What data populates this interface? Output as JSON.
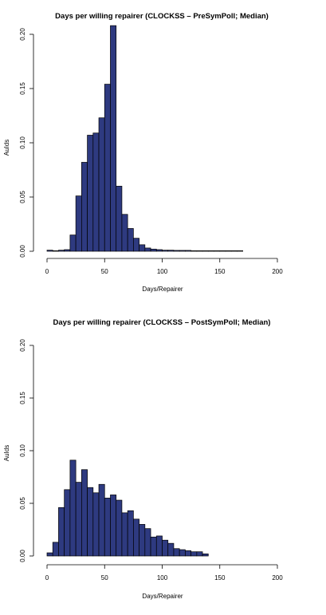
{
  "chart_data": [
    {
      "type": "bar",
      "title": "Days per willing repairer (CLOCKSS – PreSymPoll; Median)",
      "xlabel": "Days/Repairer",
      "ylabel": "AuIds",
      "xlim": [
        0,
        200
      ],
      "ylim": [
        0,
        0.2
      ],
      "xticks": [
        "0",
        "50",
        "100",
        "150",
        "200"
      ],
      "yticks": [
        "0.00",
        "0.05",
        "0.10",
        "0.15",
        "0.20"
      ],
      "bin_width": 5,
      "bins_start": [
        0,
        5,
        10,
        15,
        20,
        25,
        30,
        35,
        40,
        45,
        50,
        55,
        60,
        65,
        70,
        75,
        80,
        85,
        90,
        95,
        100,
        105,
        110,
        115,
        120,
        125,
        130,
        135,
        140,
        145,
        150,
        155,
        160,
        165
      ],
      "values": [
        0.001,
        0.0005,
        0.001,
        0.0015,
        0.015,
        0.051,
        0.082,
        0.107,
        0.109,
        0.123,
        0.154,
        0.208,
        0.06,
        0.034,
        0.021,
        0.012,
        0.006,
        0.003,
        0.002,
        0.0015,
        0.001,
        0.001,
        0.0008,
        0.0008,
        0.0008,
        0.0005,
        0.0005,
        0.0005,
        0.0005,
        0.0005,
        0.0005,
        0.0005,
        0.0005,
        0.0005
      ],
      "grid": false,
      "bar_color": "#2e3a80"
    },
    {
      "type": "bar",
      "title": "Days per willing repairer (CLOCKSS – PostSymPoll; Median)",
      "xlabel": "Days/Repairer",
      "ylabel": "AuIds",
      "xlim": [
        0,
        200
      ],
      "ylim": [
        0,
        0.2
      ],
      "xticks": [
        "0",
        "50",
        "100",
        "150",
        "200"
      ],
      "yticks": [
        "0.00",
        "0.05",
        "0.10",
        "0.15",
        "0.20"
      ],
      "bin_width": 5,
      "bins_start": [
        0,
        5,
        10,
        15,
        20,
        25,
        30,
        35,
        40,
        45,
        50,
        55,
        60,
        65,
        70,
        75,
        80,
        85,
        90,
        95,
        100,
        105,
        110,
        115,
        120,
        125,
        130,
        135
      ],
      "values": [
        0.003,
        0.013,
        0.046,
        0.063,
        0.091,
        0.07,
        0.082,
        0.065,
        0.06,
        0.068,
        0.055,
        0.058,
        0.053,
        0.041,
        0.043,
        0.035,
        0.03,
        0.026,
        0.018,
        0.019,
        0.015,
        0.012,
        0.007,
        0.006,
        0.005,
        0.004,
        0.004,
        0.002
      ],
      "grid": false,
      "bar_color": "#2e3a80"
    }
  ]
}
